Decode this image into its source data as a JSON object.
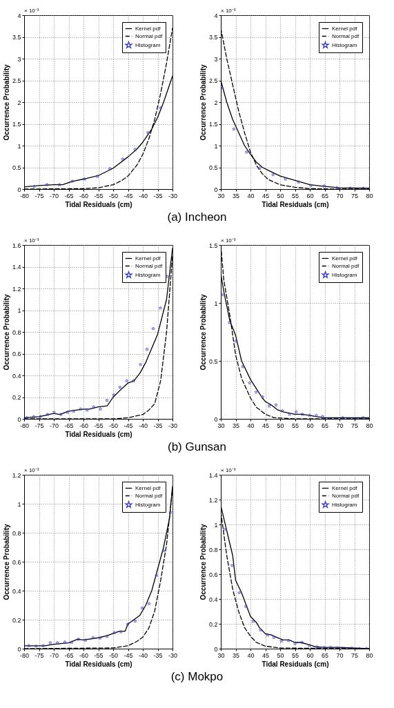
{
  "chart_data": [
    {
      "type": "line",
      "xlabel": "Tidal Residuals (cm)",
      "ylabel": "Occurrence Probability",
      "annotations": [
        "× 10⁻³",
        "(a) Incheon"
      ],
      "xlim": [
        -80,
        -30
      ],
      "ylim": [
        0,
        4
      ],
      "xticks": [
        -80,
        -75,
        -70,
        -65,
        -60,
        -55,
        -50,
        -45,
        -40,
        -35,
        -30
      ],
      "yticks": [
        0,
        0.5,
        1,
        1.5,
        2,
        2.5,
        3,
        3.5,
        4
      ],
      "grid": true,
      "legend": "top right",
      "series": [
        {
          "name": "Kernel pdf",
          "type": "line",
          "line_style": "solid",
          "color": "#000000",
          "x": [
            -80,
            -75,
            -70,
            -67,
            -65,
            -63,
            -60,
            -55,
            -50,
            -45,
            -42,
            -40,
            -37,
            -35,
            -33,
            -30
          ],
          "values": [
            0.05,
            0.08,
            0.1,
            0.1,
            0.15,
            0.19,
            0.23,
            0.31,
            0.48,
            0.74,
            0.92,
            1.08,
            1.38,
            1.65,
            2.0,
            2.6
          ]
        },
        {
          "name": "Normal pdf",
          "type": "line",
          "line_style": "dashed",
          "color": "#000000",
          "x": [
            -80,
            -60,
            -55,
            -50,
            -47,
            -45,
            -42,
            -40,
            -38,
            -36,
            -34,
            -32,
            -30
          ],
          "values": [
            0,
            0.01,
            0.03,
            0.1,
            0.2,
            0.3,
            0.55,
            0.8,
            1.15,
            1.6,
            2.2,
            2.9,
            3.7
          ]
        },
        {
          "name": "Histogram",
          "type": "scatter",
          "marker": "star",
          "color": "#3333cc",
          "x": [
            -76.6,
            -72.3,
            -68.1,
            -63.8,
            -59.6,
            -55.3,
            -51.1,
            -46.8,
            -42.6,
            -38.3,
            -34.0
          ],
          "values": [
            0.06,
            0.1,
            0.1,
            0.18,
            0.23,
            0.29,
            0.47,
            0.69,
            0.91,
            1.3,
            1.87
          ]
        }
      ]
    },
    {
      "type": "line",
      "xlabel": "Tidal Residuals (cm)",
      "ylabel": "Occurrence Probability",
      "annotations": [
        "× 10⁻³"
      ],
      "xlim": [
        30,
        80
      ],
      "ylim": [
        0,
        4
      ],
      "xticks": [
        30,
        35,
        40,
        45,
        50,
        55,
        60,
        65,
        70,
        75,
        80
      ],
      "yticks": [
        0,
        0.5,
        1,
        1.5,
        2,
        2.5,
        3,
        3.5,
        4
      ],
      "grid": true,
      "legend": "top right",
      "series": [
        {
          "name": "Kernel pdf",
          "type": "line",
          "line_style": "solid",
          "color": "#000000",
          "x": [
            30,
            32,
            34,
            36,
            38,
            40,
            42,
            44,
            46,
            50,
            55,
            60,
            65,
            70,
            80
          ],
          "values": [
            2.5,
            2.0,
            1.6,
            1.3,
            1.0,
            0.8,
            0.62,
            0.5,
            0.43,
            0.3,
            0.2,
            0.1,
            0.06,
            0.03,
            0.02
          ]
        },
        {
          "name": "Normal pdf",
          "type": "line",
          "line_style": "dashed",
          "color": "#000000",
          "x": [
            30,
            32,
            34,
            36,
            38,
            40,
            42,
            44,
            46,
            50,
            55,
            60,
            70,
            80
          ],
          "values": [
            3.7,
            3.0,
            2.4,
            1.8,
            1.3,
            0.85,
            0.55,
            0.35,
            0.22,
            0.1,
            0.04,
            0.01,
            0,
            0
          ]
        },
        {
          "name": "Histogram",
          "type": "scatter",
          "marker": "star",
          "color": "#3333cc",
          "x": [
            30.1,
            34.4,
            38.7,
            43.1,
            47.6,
            51.8,
            56.2,
            60.4,
            64.9,
            69.1,
            73.6,
            78.0
          ],
          "values": [
            2.33,
            1.38,
            0.85,
            0.48,
            0.33,
            0.23,
            0.16,
            0.08,
            0.07,
            0.03,
            0.02,
            0.02
          ]
        }
      ]
    },
    {
      "type": "line",
      "xlabel": "Tidal Residuals (cm)",
      "ylabel": "Occurrence Probability",
      "annotations": [
        "× 10⁻³",
        "(b) Gunsan"
      ],
      "xlim": [
        -80,
        -30
      ],
      "ylim": [
        0,
        1.6
      ],
      "xticks": [
        -80,
        -75,
        -70,
        -65,
        -60,
        -55,
        -50,
        -45,
        -40,
        -35,
        -30
      ],
      "yticks": [
        0,
        0.2,
        0.4,
        0.6,
        0.8,
        1,
        1.2,
        1.4,
        1.6
      ],
      "grid": true,
      "legend": "top right",
      "series": [
        {
          "name": "Kernel pdf",
          "type": "line",
          "line_style": "solid",
          "color": "#000000",
          "x": [
            -80,
            -75,
            -70,
            -68,
            -65,
            -60,
            -58,
            -55,
            -52,
            -50,
            -47,
            -45,
            -43,
            -41,
            -39,
            -35,
            -32,
            -30
          ],
          "values": [
            0.01,
            0.02,
            0.05,
            0.04,
            0.07,
            0.09,
            0.09,
            0.11,
            0.12,
            0.2,
            0.28,
            0.33,
            0.35,
            0.42,
            0.52,
            0.78,
            1.1,
            1.57
          ]
        },
        {
          "name": "Normal pdf",
          "type": "line",
          "line_style": "dashed",
          "color": "#000000",
          "x": [
            -80,
            -50,
            -45,
            -40,
            -38,
            -36,
            -34,
            -32,
            -30
          ],
          "values": [
            0,
            0,
            0.01,
            0.04,
            0.08,
            0.14,
            0.35,
            0.8,
            1.5
          ]
        },
        {
          "name": "Histogram",
          "type": "scatter",
          "marker": "star",
          "color": "#3333cc",
          "x": [
            -79.1,
            -76.8,
            -74.5,
            -72.1,
            -69.9,
            -67.6,
            -65.4,
            -63.3,
            -61.0,
            -58.8,
            -56.6,
            -54.3,
            -52.1,
            -49.8,
            -47.7,
            -45.4,
            -43.1,
            -40.8,
            -38.6,
            -36.5,
            -34.1,
            -31.8
          ],
          "values": [
            0.01,
            0.02,
            0.02,
            0.04,
            0.06,
            0.04,
            0.06,
            0.07,
            0.09,
            0.08,
            0.11,
            0.09,
            0.17,
            0.22,
            0.29,
            0.35,
            0.35,
            0.5,
            0.64,
            0.83,
            1.02,
            1.31
          ]
        }
      ]
    },
    {
      "type": "line",
      "ylabel": "Occurrence Probability",
      "annotations": [
        "× 10⁻³"
      ],
      "xlim": [
        30,
        80
      ],
      "ylim": [
        0,
        1.5
      ],
      "xticks": [
        30,
        35,
        40,
        45,
        50,
        55,
        60,
        65,
        70,
        75,
        80
      ],
      "yticks": [
        0,
        0.5,
        1,
        1.5
      ],
      "grid": true,
      "legend": "top right",
      "series": [
        {
          "name": "Kernel pdf",
          "type": "line",
          "line_style": "solid",
          "color": "#000000",
          "x": [
            30,
            31,
            33,
            35,
            37,
            40,
            42,
            44,
            45,
            47,
            49,
            51,
            53,
            55,
            57,
            60,
            62,
            65,
            70,
            80
          ],
          "values": [
            1.25,
            1.1,
            0.85,
            0.72,
            0.5,
            0.34,
            0.26,
            0.18,
            0.15,
            0.12,
            0.08,
            0.06,
            0.05,
            0.04,
            0.04,
            0.03,
            0.02,
            0.01,
            0.01,
            0.01
          ]
        },
        {
          "name": "Normal pdf",
          "type": "line",
          "line_style": "dashed",
          "color": "#000000",
          "x": [
            30,
            31,
            33,
            35,
            37,
            40,
            42,
            45,
            48,
            55,
            80
          ],
          "values": [
            1.5,
            1.2,
            0.9,
            0.55,
            0.35,
            0.18,
            0.1,
            0.04,
            0.01,
            0,
            0
          ]
        },
        {
          "name": "Histogram",
          "type": "scatter",
          "marker": "star",
          "color": "#3333cc",
          "x": [
            30.5,
            32.9,
            35.1,
            37.4,
            39.7,
            41.9,
            44.1,
            46.3,
            48.6,
            50.8,
            53.2,
            55.4,
            57.5,
            59.9,
            62.2,
            64.3,
            66.5,
            68.9,
            71.1,
            73.5,
            75.7,
            78.0
          ],
          "values": [
            1.07,
            0.83,
            0.67,
            0.45,
            0.31,
            0.23,
            0.19,
            0.11,
            0.12,
            0.07,
            0.04,
            0.06,
            0.04,
            0.03,
            0.03,
            0.02,
            0,
            0,
            0.01,
            0,
            0,
            0.01
          ]
        }
      ]
    },
    {
      "type": "line",
      "xlabel": "Tidal Residuals (cm)",
      "ylabel": "Occurrence Probability",
      "annotations": [
        "× 10⁻³",
        "(c) Mokpo"
      ],
      "xlim": [
        -80,
        -30
      ],
      "ylim": [
        0,
        1.2
      ],
      "xticks": [
        -80,
        -75,
        -70,
        -65,
        -60,
        -55,
        -50,
        -45,
        -40,
        -35,
        -30
      ],
      "yticks": [
        0,
        0.2,
        0.4,
        0.6,
        0.8,
        1,
        1.2
      ],
      "grid": true,
      "legend": "top right",
      "series": [
        {
          "name": "Kernel pdf",
          "type": "line",
          "line_style": "solid",
          "color": "#000000",
          "x": [
            -80,
            -73,
            -70,
            -65,
            -62,
            -60,
            -55,
            -52,
            -48,
            -46,
            -45,
            -43,
            -41,
            -39,
            -37,
            -35,
            -33,
            -31,
            -30
          ],
          "values": [
            0.02,
            0.02,
            0.03,
            0.04,
            0.065,
            0.06,
            0.075,
            0.09,
            0.12,
            0.12,
            0.17,
            0.2,
            0.23,
            0.3,
            0.4,
            0.55,
            0.7,
            0.9,
            1.12
          ]
        },
        {
          "name": "Normal pdf",
          "type": "line",
          "line_style": "dashed",
          "color": "#000000",
          "x": [
            -80,
            -50,
            -45,
            -42,
            -40,
            -38,
            -36,
            -34,
            -32,
            -30
          ],
          "values": [
            0,
            0.005,
            0.02,
            0.05,
            0.08,
            0.14,
            0.26,
            0.47,
            0.72,
            1.1
          ]
        },
        {
          "name": "Histogram",
          "type": "scatter",
          "marker": "star",
          "color": "#3333cc",
          "x": [
            -78.4,
            -76.0,
            -73.6,
            -71.2,
            -68.8,
            -66.3,
            -64.0,
            -61.7,
            -59.3,
            -56.8,
            -54.4,
            -52.1,
            -49.6,
            -47.4,
            -45.1,
            -42.6,
            -40.2,
            -37.9,
            -35.4,
            -33.0,
            -30.7
          ],
          "values": [
            0.02,
            0.017,
            0.02,
            0.04,
            0.04,
            0.045,
            0.043,
            0.065,
            0.058,
            0.076,
            0.073,
            0.085,
            0.11,
            0.116,
            0.168,
            0.19,
            0.28,
            0.31,
            0.505,
            0.675,
            0.94
          ]
        }
      ]
    },
    {
      "type": "line",
      "xlabel": "Tidal Residuals (cm)",
      "ylabel": "Occurrence Probability",
      "annotations": [
        "× 10⁻³"
      ],
      "xlim": [
        30,
        80
      ],
      "ylim": [
        0,
        1.4
      ],
      "xticks": [
        30,
        35,
        40,
        45,
        50,
        55,
        60,
        65,
        70,
        75,
        80
      ],
      "yticks": [
        0,
        0.2,
        0.4,
        0.6,
        0.8,
        1,
        1.2,
        1.4
      ],
      "grid": true,
      "legend": "top right",
      "series": [
        {
          "name": "Kernel pdf",
          "type": "line",
          "line_style": "solid",
          "color": "#000000",
          "x": [
            30,
            32,
            34,
            35,
            37,
            40,
            42,
            43,
            45,
            47,
            49,
            51,
            53,
            55,
            57,
            60,
            62,
            65,
            70,
            80
          ],
          "values": [
            1.15,
            0.95,
            0.75,
            0.55,
            0.45,
            0.26,
            0.21,
            0.17,
            0.12,
            0.11,
            0.09,
            0.07,
            0.07,
            0.05,
            0.05,
            0.03,
            0.015,
            0.01,
            0.01,
            0
          ]
        },
        {
          "name": "Normal pdf",
          "type": "line",
          "line_style": "dashed",
          "color": "#000000",
          "x": [
            30,
            32,
            34,
            36,
            38,
            40,
            42,
            45,
            50,
            80
          ],
          "values": [
            1.1,
            0.75,
            0.48,
            0.3,
            0.17,
            0.1,
            0.05,
            0.02,
            0.005,
            0
          ]
        },
        {
          "name": "Histogram",
          "type": "scatter",
          "marker": "star",
          "color": "#3333cc",
          "x": [
            31.3,
            33.8,
            36.2,
            38.4,
            40.9,
            43.4,
            45.8,
            47.9,
            50.4,
            52.8,
            55.0,
            57.4,
            59.9,
            62.4,
            64.8,
            67.0,
            69.3,
            71.7,
            74.2,
            76.7,
            79.1
          ],
          "values": [
            0.96,
            0.67,
            0.45,
            0.34,
            0.22,
            0.15,
            0.11,
            0.09,
            0.06,
            0.065,
            0.04,
            0.05,
            0.025,
            0.015,
            0.01,
            0.01,
            0.005,
            0,
            0.005,
            0,
            0
          ]
        }
      ]
    }
  ]
}
